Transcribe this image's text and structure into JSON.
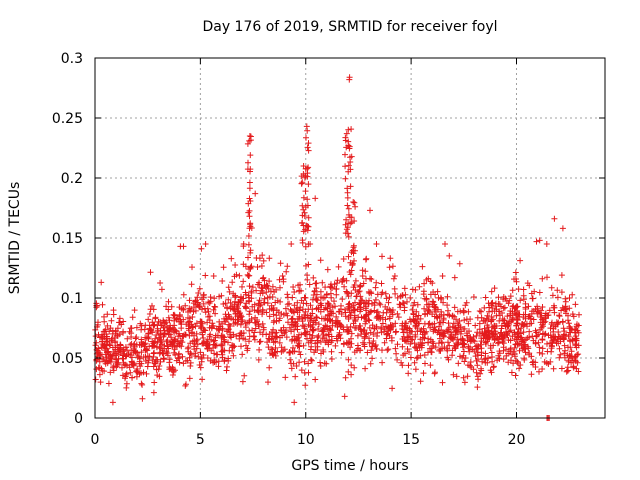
{
  "chart_data": {
    "type": "scatter",
    "title": "Day 176 of 2019, SRMTID for receiver foyl",
    "xlabel": "GPS time / hours",
    "ylabel": "SRMTID / TECUs",
    "xlim": [
      0,
      24.2
    ],
    "ylim": [
      0,
      0.3
    ],
    "xticks": [
      0,
      5,
      10,
      15,
      20
    ],
    "xtick_labels": [
      "0",
      "5",
      "10",
      "15",
      "20"
    ],
    "yticks": [
      0,
      0.05,
      0.1,
      0.15,
      0.2,
      0.25,
      0.3
    ],
    "ytick_labels": [
      "0",
      "0.05",
      "0.1",
      "0.15",
      "0.2",
      "0.25",
      "0.3"
    ],
    "grid": true,
    "marker": "+",
    "color": "#e41a1c",
    "series": [
      {
        "name": "SRMTID",
        "profile": [
          {
            "x": 0.0,
            "center": 0.06,
            "spread": 0.03
          },
          {
            "x": 1.0,
            "center": 0.058,
            "spread": 0.032
          },
          {
            "x": 2.0,
            "center": 0.055,
            "spread": 0.03
          },
          {
            "x": 3.0,
            "center": 0.062,
            "spread": 0.032
          },
          {
            "x": 4.0,
            "center": 0.068,
            "spread": 0.035
          },
          {
            "x": 5.0,
            "center": 0.072,
            "spread": 0.035
          },
          {
            "x": 6.0,
            "center": 0.075,
            "spread": 0.038
          },
          {
            "x": 7.0,
            "center": 0.085,
            "spread": 0.045
          },
          {
            "x": 8.0,
            "center": 0.09,
            "spread": 0.045
          },
          {
            "x": 9.0,
            "center": 0.075,
            "spread": 0.04
          },
          {
            "x": 10.0,
            "center": 0.08,
            "spread": 0.045
          },
          {
            "x": 11.0,
            "center": 0.082,
            "spread": 0.04
          },
          {
            "x": 12.0,
            "center": 0.085,
            "spread": 0.045
          },
          {
            "x": 13.0,
            "center": 0.082,
            "spread": 0.04
          },
          {
            "x": 14.0,
            "center": 0.08,
            "spread": 0.04
          },
          {
            "x": 15.0,
            "center": 0.075,
            "spread": 0.04
          },
          {
            "x": 16.0,
            "center": 0.078,
            "spread": 0.04
          },
          {
            "x": 17.0,
            "center": 0.07,
            "spread": 0.035
          },
          {
            "x": 18.0,
            "center": 0.06,
            "spread": 0.03
          },
          {
            "x": 19.0,
            "center": 0.07,
            "spread": 0.035
          },
          {
            "x": 20.0,
            "center": 0.075,
            "spread": 0.04
          },
          {
            "x": 21.0,
            "center": 0.075,
            "spread": 0.04
          },
          {
            "x": 22.0,
            "center": 0.07,
            "spread": 0.038
          },
          {
            "x": 23.0,
            "center": 0.06,
            "spread": 0.03
          }
        ],
        "bursts": [
          {
            "x": 7.35,
            "min": 0.12,
            "max": 0.235,
            "count": 28
          },
          {
            "x": 9.9,
            "min": 0.13,
            "max": 0.21,
            "count": 20
          },
          {
            "x": 10.05,
            "min": 0.14,
            "max": 0.243,
            "count": 22
          },
          {
            "x": 11.95,
            "min": 0.15,
            "max": 0.237,
            "count": 20
          },
          {
            "x": 12.08,
            "min": 0.16,
            "max": 0.284,
            "count": 16
          },
          {
            "x": 12.25,
            "min": 0.12,
            "max": 0.18,
            "count": 14
          }
        ],
        "outliers": [
          {
            "x": 21.45,
            "y": 0.0
          },
          {
            "x": 21.5,
            "y": 0.0
          },
          {
            "x": 21.55,
            "y": 0.0
          },
          {
            "x": 0.85,
            "y": 0.013
          },
          {
            "x": 9.45,
            "y": 0.013
          },
          {
            "x": 11.85,
            "y": 0.018
          },
          {
            "x": 2.25,
            "y": 0.016
          },
          {
            "x": 13.05,
            "y": 0.173
          },
          {
            "x": 21.8,
            "y": 0.166
          },
          {
            "x": 22.2,
            "y": 0.158
          },
          {
            "x": 21.1,
            "y": 0.148
          },
          {
            "x": 20.95,
            "y": 0.147
          },
          {
            "x": 4.05,
            "y": 0.143
          },
          {
            "x": 4.2,
            "y": 0.143
          },
          {
            "x": 5.05,
            "y": 0.141
          },
          {
            "x": 10.45,
            "y": 0.183
          },
          {
            "x": 7.6,
            "y": 0.187
          }
        ],
        "point_count": 2400
      }
    ]
  }
}
